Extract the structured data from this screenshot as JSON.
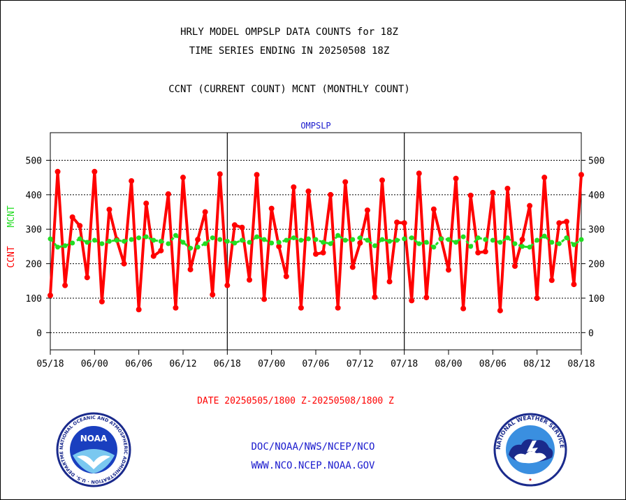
{
  "header": {
    "title_line1": "HRLY MODEL OMPSLP DATA COUNTS for 18Z",
    "title_line2": "TIME SERIES ENDING IN 20250508 18Z",
    "title_line3": "CCNT (CURRENT COUNT) MCNT (MONTHLY COUNT)"
  },
  "footer": {
    "line1": "DOC/NOAA/NWS/NCEP/NCO",
    "line2": "WWW.NCO.NCEP.NOAA.GOV"
  },
  "logos": {
    "noaa_text": "NOAA",
    "noaa_ring_text": "NATIONAL OCEANIC AND ATMOSPHERIC ADMINISTRATION · U.S. DEPARTMENT OF COMMERCE",
    "nws_ring_text": "NATIONAL WEATHER SERVICE"
  },
  "colors": {
    "ccnt": "#ff0000",
    "mcnt": "#22dd22",
    "plot_title": "#1a1acd",
    "date_label": "#ff0000"
  },
  "chart_data": {
    "type": "line",
    "title": "OMPSLP",
    "xlabel": "DATE 20250505/1800 Z-20250508/1800 Z",
    "ylabel_series": [
      "CCNT",
      "MCNT"
    ],
    "x_tick_labels": [
      "05/18",
      "06/00",
      "06/06",
      "06/12",
      "06/18",
      "07/00",
      "07/06",
      "07/12",
      "07/18",
      "08/00",
      "08/06",
      "08/12",
      "08/18"
    ],
    "x_range_hours": [
      0,
      72
    ],
    "ylim": [
      -50,
      580
    ],
    "y_ticks": [
      0,
      100,
      200,
      300,
      400,
      500
    ],
    "grid": true,
    "day_separators_hours": [
      24,
      48
    ],
    "series": [
      {
        "name": "CCNT",
        "values": [
          108,
          467,
          137,
          335,
          310,
          160,
          467,
          90,
          357,
          270,
          200,
          440,
          67,
          375,
          222,
          238,
          402,
          72,
          450,
          183,
          270,
          350,
          110,
          460,
          137,
          312,
          305,
          153,
          458,
          97,
          360,
          250,
          163,
          422,
          72,
          410,
          228,
          232,
          400,
          72,
          437,
          190,
          260,
          355,
          103,
          442,
          148,
          320,
          318,
          93,
          462,
          102,
          358,
          272,
          182,
          447,
          70,
          398,
          232,
          235,
          406,
          64,
          418,
          193,
          270,
          368,
          100,
          450,
          152,
          318,
          322,
          140,
          458
        ]
      },
      {
        "name": "MCNT",
        "values": [
          272,
          248,
          252,
          260,
          272,
          262,
          268,
          258,
          265,
          268,
          265,
          270,
          275,
          278,
          268,
          265,
          258,
          282,
          262,
          245,
          248,
          258,
          275,
          270,
          265,
          260,
          268,
          262,
          278,
          270,
          260,
          262,
          268,
          275,
          268,
          272,
          270,
          262,
          258,
          282,
          268,
          270,
          275,
          268,
          252,
          270,
          265,
          268,
          272,
          275,
          258,
          262,
          248,
          272,
          270,
          262,
          278,
          250,
          275,
          270,
          268,
          262,
          275,
          258,
          250,
          248,
          268,
          280,
          262,
          258,
          275,
          255,
          270
        ]
      }
    ]
  }
}
